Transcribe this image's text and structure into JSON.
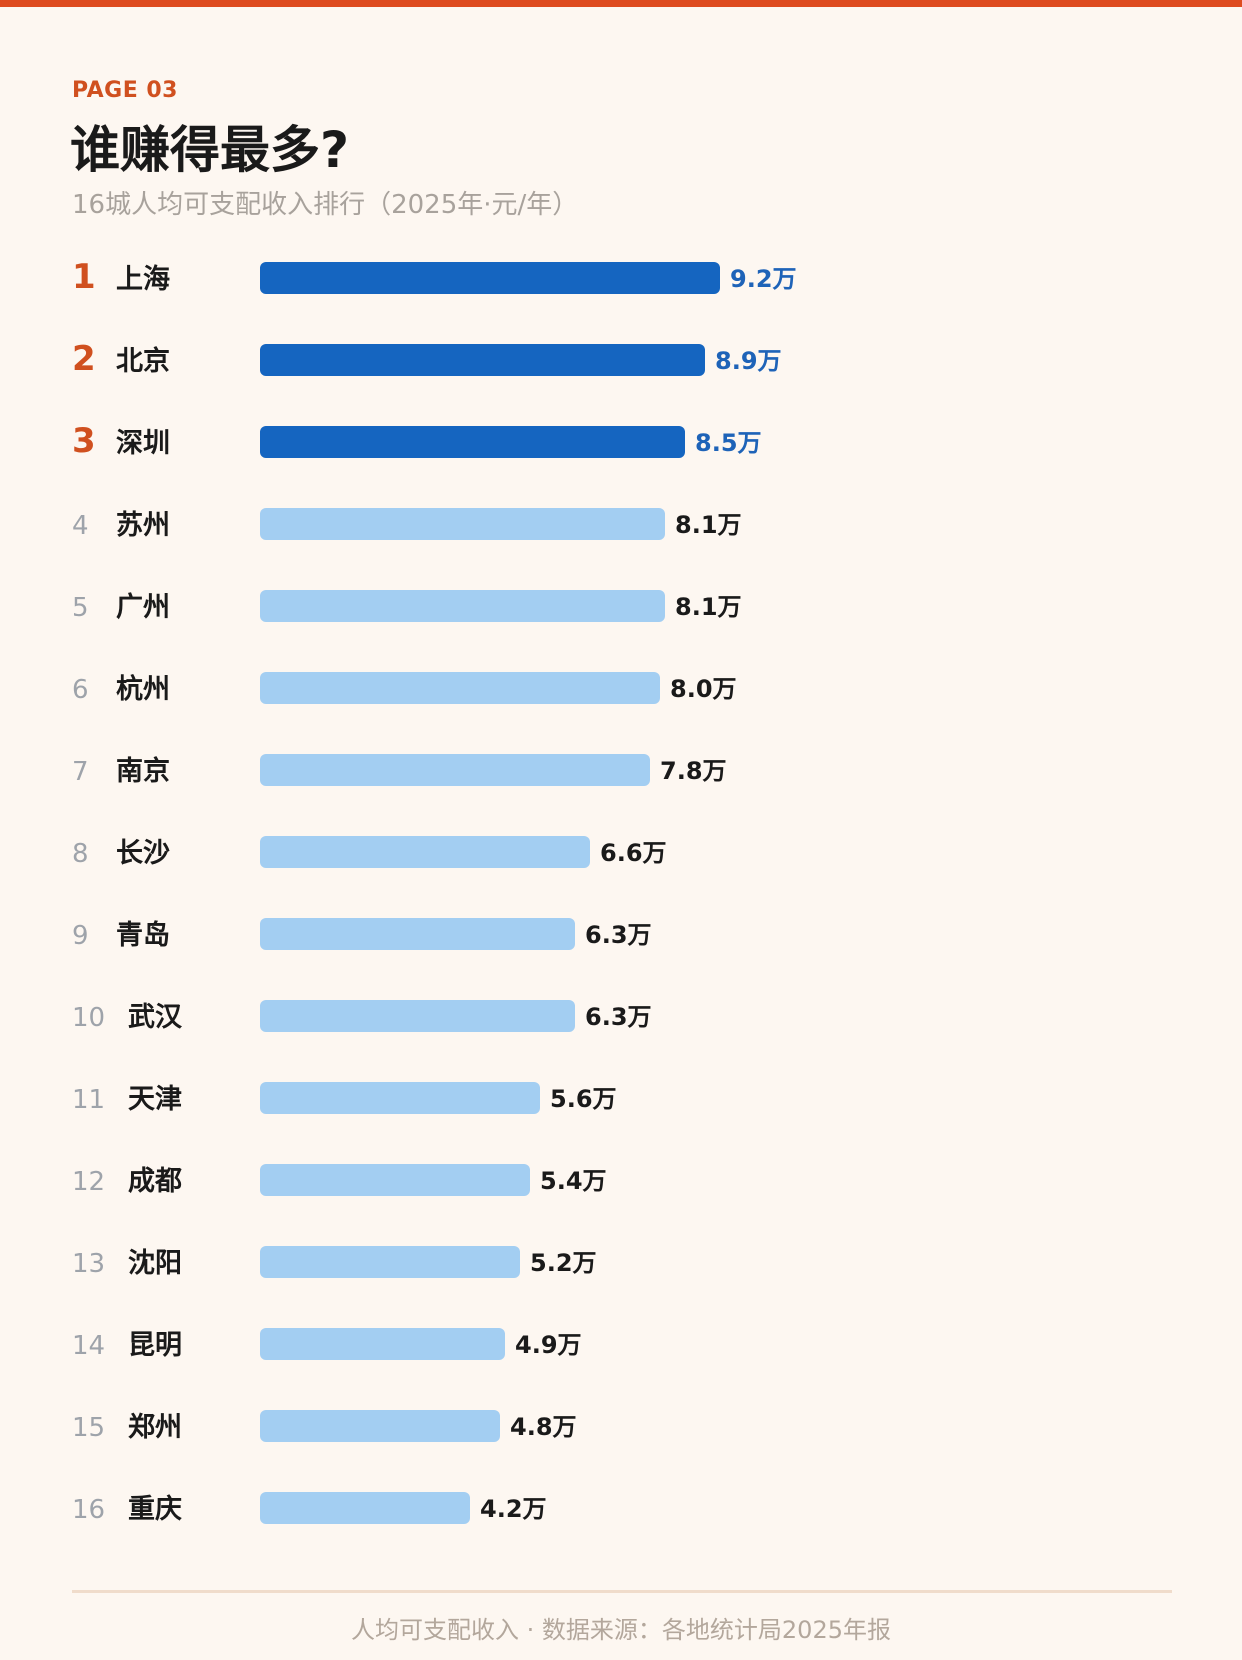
{
  "header": {
    "page_label": "PAGE 03",
    "title": "谁赚得最多?",
    "subtitle": "16城人均可支配收入排行（2025年·元/年）"
  },
  "colors": {
    "accent": "#de4b1f",
    "rank_top": "#d0501f",
    "rank_other": "#9ea3aa",
    "bar_top": "#1565c0",
    "bar_other": "#a3cef2",
    "value_top": "#1e63b8",
    "value_other": "#1a1a1a"
  },
  "chart_data": {
    "type": "bar",
    "orientation": "horizontal",
    "title": "谁赚得最多?",
    "subtitle": "16城人均可支配收入排行（2025年·元/年）",
    "unit": "万元/年",
    "xlim": [
      0,
      10
    ],
    "highlight_top_n": 3,
    "ranks": [
      "1",
      "2",
      "3",
      "4",
      "5",
      "6",
      "7",
      "8",
      "9",
      "10",
      "11",
      "12",
      "13",
      "14",
      "15",
      "16"
    ],
    "categories": [
      "上海",
      "北京",
      "深圳",
      "苏州",
      "广州",
      "杭州",
      "南京",
      "长沙",
      "青岛",
      "武汉",
      "天津",
      "成都",
      "沈阳",
      "昆明",
      "郑州",
      "重庆"
    ],
    "values": [
      9.2,
      8.9,
      8.5,
      8.1,
      8.1,
      8.0,
      7.8,
      6.6,
      6.3,
      6.3,
      5.6,
      5.4,
      5.2,
      4.9,
      4.8,
      4.2
    ],
    "value_labels": [
      "9.2万",
      "8.9万",
      "8.5万",
      "8.1万",
      "8.1万",
      "8.0万",
      "7.8万",
      "6.6万",
      "6.3万",
      "6.3万",
      "5.6万",
      "5.4万",
      "5.2万",
      "4.9万",
      "4.8万",
      "4.2万"
    ]
  },
  "footer": {
    "text": "人均可支配收入 · 数据来源：各地统计局2025年报"
  }
}
